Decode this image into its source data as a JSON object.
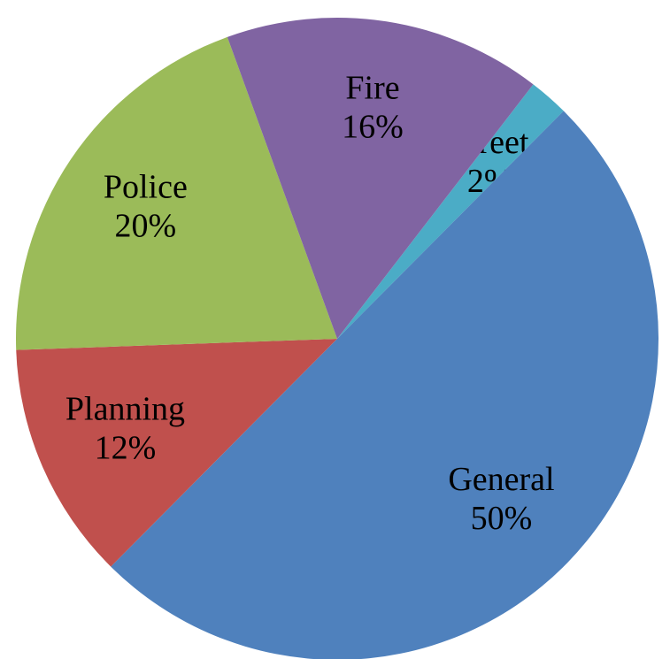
{
  "chart_data": {
    "type": "pie",
    "categories": [
      "Street",
      "General",
      "Planning",
      "Police",
      "Fire"
    ],
    "values": [
      2,
      50,
      12,
      20,
      16
    ],
    "value_labels": [
      "2%",
      "50%",
      "12%",
      "20%",
      "16%"
    ],
    "colors": [
      "#4bacc6",
      "#4f81bd",
      "#c0504d",
      "#9bbb59",
      "#8064a2"
    ]
  }
}
